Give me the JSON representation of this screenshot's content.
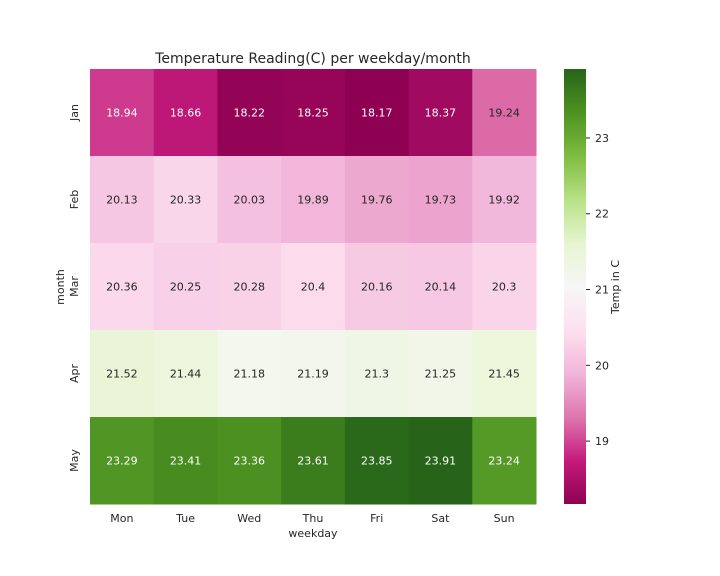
{
  "chart_data": {
    "type": "heatmap",
    "title": "Temperature Reading(C) per weekday/month",
    "xlabel": "weekday",
    "ylabel": "month",
    "x": [
      "Mon",
      "Tue",
      "Wed",
      "Thu",
      "Fri",
      "Sat",
      "Sun"
    ],
    "y": [
      "Jan",
      "Feb",
      "Mar",
      "Apr",
      "May"
    ],
    "values": [
      [
        18.94,
        18.66,
        18.22,
        18.25,
        18.17,
        18.37,
        19.24
      ],
      [
        20.13,
        20.33,
        20.03,
        19.89,
        19.76,
        19.73,
        19.92
      ],
      [
        20.36,
        20.25,
        20.28,
        20.4,
        20.16,
        20.14,
        20.3
      ],
      [
        21.52,
        21.44,
        21.18,
        21.19,
        21.3,
        21.25,
        21.45
      ],
      [
        23.29,
        23.41,
        23.36,
        23.61,
        23.85,
        23.91,
        23.24
      ]
    ],
    "colorbar": {
      "label": "Temp in C",
      "range": [
        18.17,
        23.91
      ],
      "ticks": [
        19,
        20,
        21,
        22,
        23
      ],
      "colormap": "PiYG"
    },
    "grid": false
  }
}
